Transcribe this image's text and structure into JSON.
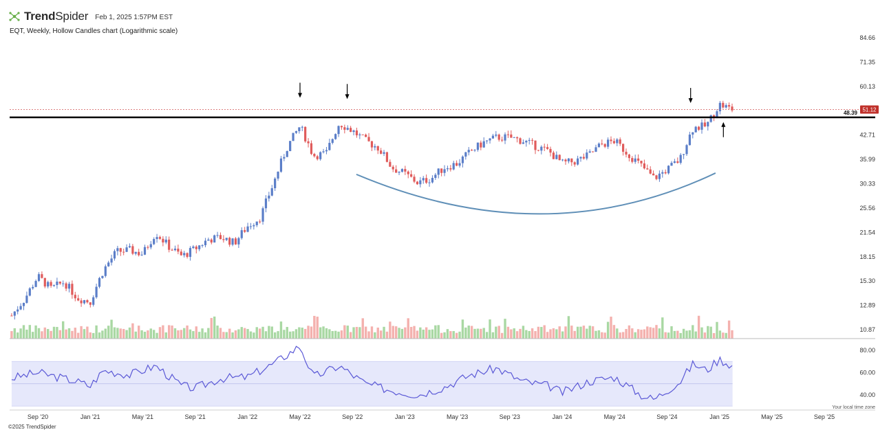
{
  "header": {
    "brand_bold": "Trend",
    "brand_thin": "Spider",
    "timestamp": "Feb 1, 2025 1:57PM EST",
    "subtitle": "EQT, Weekly, Hollow Candles chart (Logarithmic scale)",
    "logo_icon": "trendspider-logo-icon"
  },
  "footer": {
    "copyright": "©2025 TrendSpider",
    "timezone_note": "Your local time zone"
  },
  "colors": {
    "up": "#5b7ec8",
    "down": "#e05b5b",
    "vol_up": "#a9d8a3",
    "vol_down": "#f4b1ae",
    "rsi_line": "#5a58d6",
    "rsi_band": "#e6e8fb",
    "arc": "#5f8fb7",
    "price_badge": "#c0312b"
  },
  "chart_data": {
    "type": "candlestick",
    "scale": "log",
    "y_ticks": [
      "84.66",
      "71.35",
      "60.13",
      "51.12",
      "42.71",
      "35.99",
      "30.33",
      "25.56",
      "21.54",
      "18.15",
      "15.30",
      "12.89",
      "10.87"
    ],
    "x_ticks": [
      "Sep '20",
      "Jan '21",
      "May '21",
      "Sep '21",
      "Jan '22",
      "May '22",
      "Sep '22",
      "Jan '23",
      "May '23",
      "Sep '23",
      "Jan '24",
      "May '24",
      "Sep '24",
      "Jan '25",
      "May '25",
      "Sep '25"
    ],
    "resistance_level": "48.39",
    "last_price": "51.12",
    "price_anchors": [
      [
        "2020-07",
        12.0
      ],
      [
        "2020-08",
        13.5
      ],
      [
        "2020-09",
        15.8
      ],
      [
        "2020-10",
        14.5
      ],
      [
        "2020-11",
        15.2
      ],
      [
        "2020-12",
        13.6
      ],
      [
        "2021-01",
        13.2
      ],
      [
        "2021-02",
        16.5
      ],
      [
        "2021-03",
        18.8
      ],
      [
        "2021-04",
        19.0
      ],
      [
        "2021-05",
        18.5
      ],
      [
        "2021-06",
        21.5
      ],
      [
        "2021-07",
        19.5
      ],
      [
        "2021-08",
        18.2
      ],
      [
        "2021-09",
        19.2
      ],
      [
        "2021-10",
        20.5
      ],
      [
        "2021-11",
        20.8
      ],
      [
        "2021-12",
        20.0
      ],
      [
        "2022-01",
        22.5
      ],
      [
        "2022-02",
        24.0
      ],
      [
        "2022-03",
        30.5
      ],
      [
        "2022-04",
        39.0
      ],
      [
        "2022-05",
        45.5
      ],
      [
        "2022-06",
        37.0
      ],
      [
        "2022-07",
        37.5
      ],
      [
        "2022-08",
        46.5
      ],
      [
        "2022-09",
        44.0
      ],
      [
        "2022-10",
        41.0
      ],
      [
        "2022-11",
        39.0
      ],
      [
        "2022-12",
        34.0
      ],
      [
        "2023-01",
        32.5
      ],
      [
        "2023-02",
        30.5
      ],
      [
        "2023-03",
        31.5
      ],
      [
        "2023-04",
        34.0
      ],
      [
        "2023-05",
        35.0
      ],
      [
        "2023-06",
        38.0
      ],
      [
        "2023-07",
        40.5
      ],
      [
        "2023-08",
        42.0
      ],
      [
        "2023-09",
        42.0
      ],
      [
        "2023-10",
        41.0
      ],
      [
        "2023-11",
        39.5
      ],
      [
        "2023-12",
        38.0
      ],
      [
        "2024-01",
        35.0
      ],
      [
        "2024-02",
        35.5
      ],
      [
        "2024-03",
        37.0
      ],
      [
        "2024-04",
        40.0
      ],
      [
        "2024-05",
        41.0
      ],
      [
        "2024-06",
        37.5
      ],
      [
        "2024-07",
        34.5
      ],
      [
        "2024-08",
        31.5
      ],
      [
        "2024-09",
        33.5
      ],
      [
        "2024-10",
        36.0
      ],
      [
        "2024-11",
        45.0
      ],
      [
        "2024-12",
        45.5
      ],
      [
        "2025-01",
        53.0
      ],
      [
        "2025-02",
        51.12
      ]
    ],
    "rsi": {
      "y_ticks": [
        "80.00",
        "60.00",
        "40.00"
      ],
      "band": [
        30,
        70
      ],
      "midline": 50,
      "anchors": [
        [
          "2020-07",
          55
        ],
        [
          "2020-09",
          60
        ],
        [
          "2020-12",
          52
        ],
        [
          "2021-01",
          48
        ],
        [
          "2021-02",
          62
        ],
        [
          "2021-04",
          58
        ],
        [
          "2021-06",
          66
        ],
        [
          "2021-08",
          48
        ],
        [
          "2021-09",
          46
        ],
        [
          "2021-11",
          55
        ],
        [
          "2022-01",
          56
        ],
        [
          "2022-03",
          68
        ],
        [
          "2022-05",
          84
        ],
        [
          "2022-06",
          56
        ],
        [
          "2022-08",
          66
        ],
        [
          "2022-10",
          50
        ],
        [
          "2022-12",
          44
        ],
        [
          "2023-02",
          40
        ],
        [
          "2023-04",
          47
        ],
        [
          "2023-06",
          58
        ],
        [
          "2023-08",
          64
        ],
        [
          "2023-10",
          52
        ],
        [
          "2023-12",
          48
        ],
        [
          "2024-01",
          42
        ],
        [
          "2024-03",
          52
        ],
        [
          "2024-05",
          56
        ],
        [
          "2024-07",
          40
        ],
        [
          "2024-08",
          36
        ],
        [
          "2024-10",
          52
        ],
        [
          "2024-11",
          68
        ],
        [
          "2024-12",
          62
        ],
        [
          "2025-01",
          72
        ],
        [
          "2025-02",
          66
        ]
      ]
    }
  }
}
